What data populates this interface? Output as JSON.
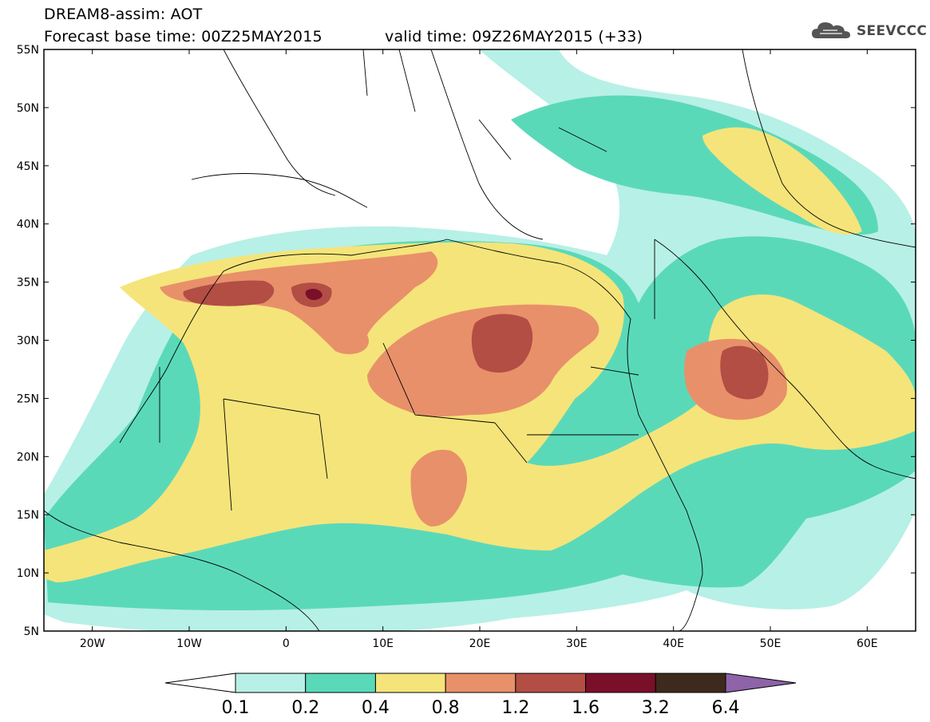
{
  "header": {
    "title": "DREAM8-assim: AOT",
    "base_time": "Forecast base time: 00Z25MAY2015",
    "valid_time": "valid time: 09Z26MAY2015 (+33)",
    "logo_text": "SEEVCCC",
    "logo_icon": "cloud-icon"
  },
  "map": {
    "lat_labels": [
      "55N",
      "50N",
      "45N",
      "40N",
      "35N",
      "30N",
      "25N",
      "20N",
      "15N",
      "10N",
      "5N"
    ],
    "lon_labels": [
      "20W",
      "10W",
      "0",
      "10E",
      "20E",
      "30E",
      "40E",
      "50E",
      "60E"
    ],
    "extent": {
      "lon_min": -25,
      "lon_max": 65,
      "lat_min": 5,
      "lat_max": 55
    }
  },
  "colorbar": {
    "labels": [
      "0.1",
      "0.2",
      "0.4",
      "0.8",
      "1.2",
      "1.6",
      "3.2",
      "6.4"
    ],
    "colors": [
      "#ffffff",
      "#b7f0e6",
      "#5ad9b9",
      "#f5e47a",
      "#e8906a",
      "#b24e44",
      "#7a0f2a",
      "#3e2a1c",
      "#8e63a8"
    ]
  }
}
